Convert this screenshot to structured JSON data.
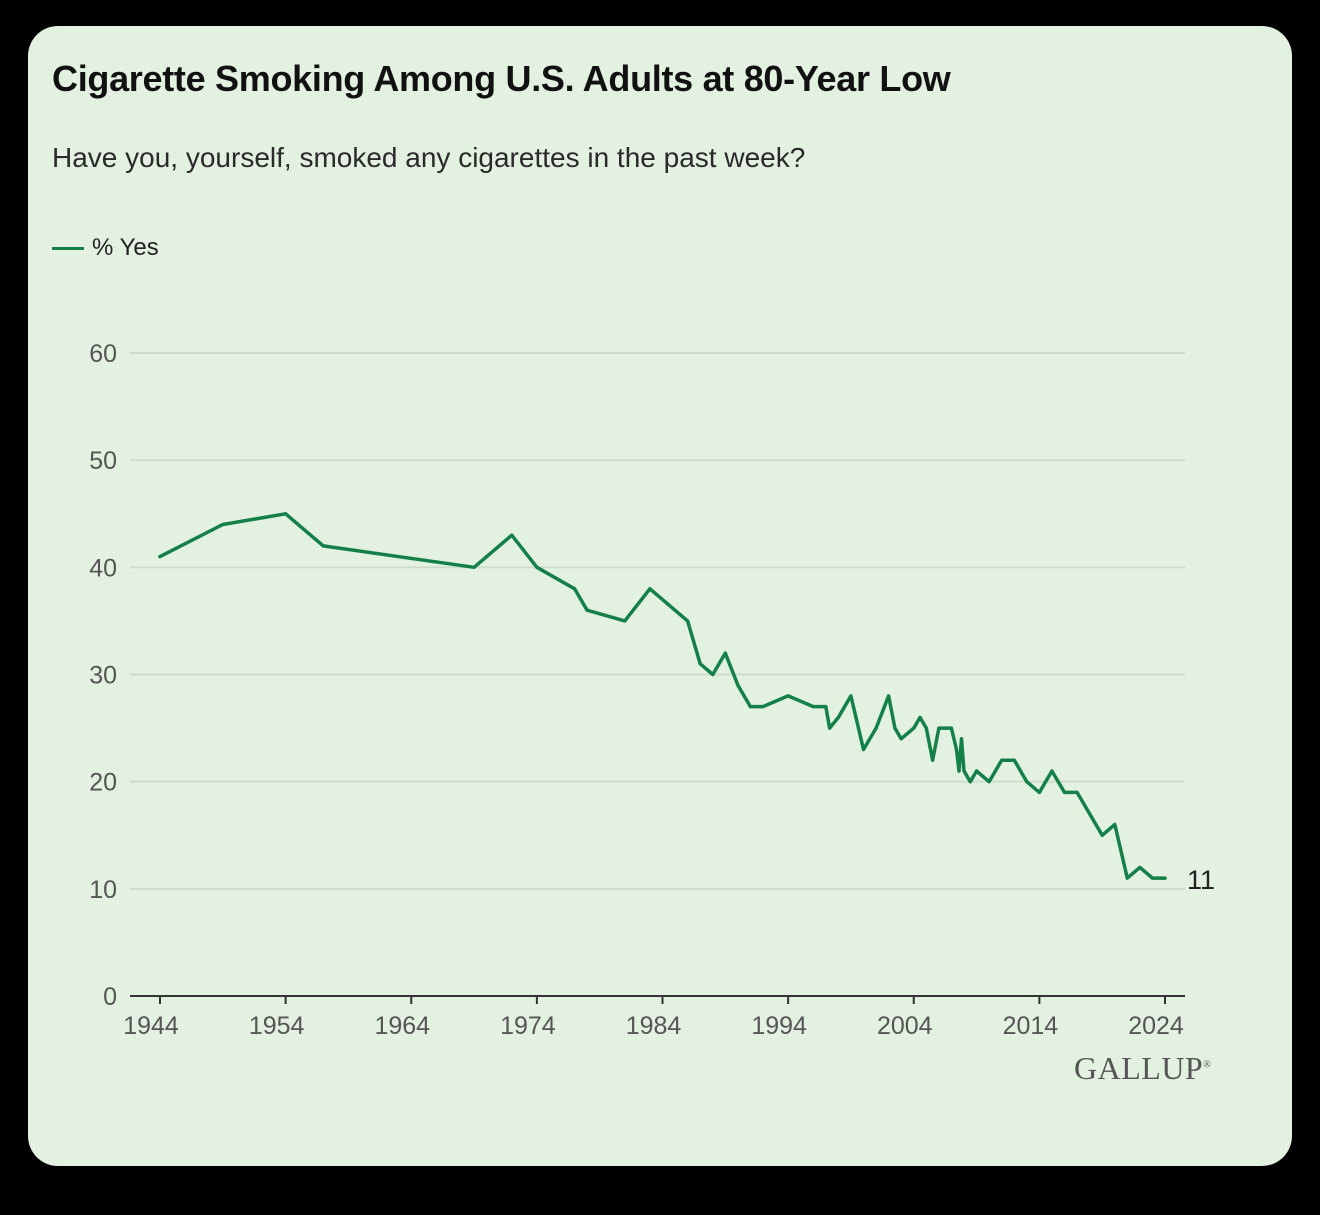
{
  "card": {
    "title": "Cigarette Smoking Among U.S. Adults at 80-Year Low",
    "subtitle": "Have you, yourself, smoked any cigarettes in the past week?",
    "legend_label": "% Yes",
    "brand": "GALLUP",
    "brand_mark": "®"
  },
  "colors": {
    "background": "#e3f1e1",
    "line": "#148048",
    "grid": "#cfdccc",
    "axis": "#333333",
    "tick_text": "#555555"
  },
  "chart_data": {
    "type": "line",
    "title": "Cigarette Smoking Among U.S. Adults at 80-Year Low",
    "subtitle": "Have you, yourself, smoked any cigarettes in the past week?",
    "xlabel": "",
    "ylabel": "",
    "xlim": [
      1944,
      2024
    ],
    "ylim": [
      0,
      60
    ],
    "xticks": [
      1944,
      1954,
      1964,
      1974,
      1984,
      1994,
      2004,
      2014,
      2024
    ],
    "yticks": [
      0,
      10,
      20,
      30,
      40,
      50,
      60
    ],
    "grid": true,
    "legend": "top-left",
    "end_label": "11",
    "series": [
      {
        "name": "% Yes",
        "x": [
          1944,
          1949,
          1954,
          1957,
          1969,
          1972,
          1974,
          1977,
          1978,
          1981,
          1983,
          1986,
          1987,
          1988,
          1989,
          1990,
          1991,
          1992,
          1994,
          1996,
          1997,
          1997.3,
          1998,
          1999,
          2000,
          2001,
          2002,
          2002.5,
          2003,
          2004,
          2004.5,
          2005,
          2005.5,
          2006,
          2006.5,
          2007,
          2007.4,
          2007.6,
          2007.8,
          2008,
          2008.5,
          2009,
          2010,
          2011,
          2012,
          2013,
          2014,
          2015,
          2016,
          2017,
          2018,
          2019,
          2020,
          2021,
          2022,
          2023,
          2024
        ],
        "values": [
          41,
          44,
          45,
          42,
          40,
          43,
          40,
          38,
          36,
          35,
          38,
          35,
          31,
          30,
          32,
          29,
          27,
          27,
          28,
          27,
          27,
          25,
          26,
          28,
          23,
          25,
          28,
          25,
          24,
          25,
          26,
          25,
          22,
          25,
          25,
          25,
          23,
          21,
          24,
          21,
          20,
          21,
          20,
          22,
          22,
          20,
          19,
          21,
          19,
          19,
          17,
          15,
          16,
          11,
          12,
          11,
          11
        ]
      }
    ]
  }
}
